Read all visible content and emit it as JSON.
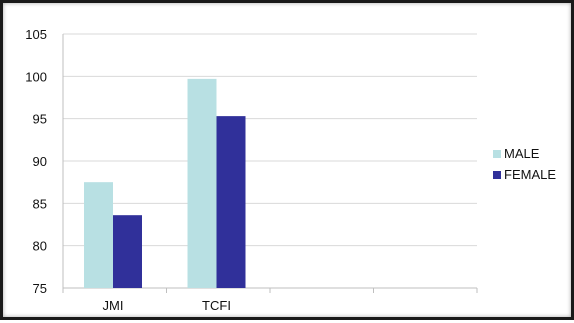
{
  "chart_data": {
    "type": "bar",
    "title": "",
    "xlabel": "",
    "ylabel": "",
    "categories": [
      "JMI",
      "TCFI",
      "",
      ""
    ],
    "series": [
      {
        "name": "MALE",
        "values": [
          87.5,
          99.7,
          null,
          null
        ],
        "color": "#b8e0e3"
      },
      {
        "name": "FEMALE",
        "values": [
          83.6,
          95.3,
          null,
          null
        ],
        "color": "#30309a"
      }
    ],
    "ylim": [
      75,
      105
    ],
    "yticks": [
      75,
      80,
      85,
      90,
      95,
      100,
      105
    ],
    "grid": true,
    "legend": "right"
  }
}
